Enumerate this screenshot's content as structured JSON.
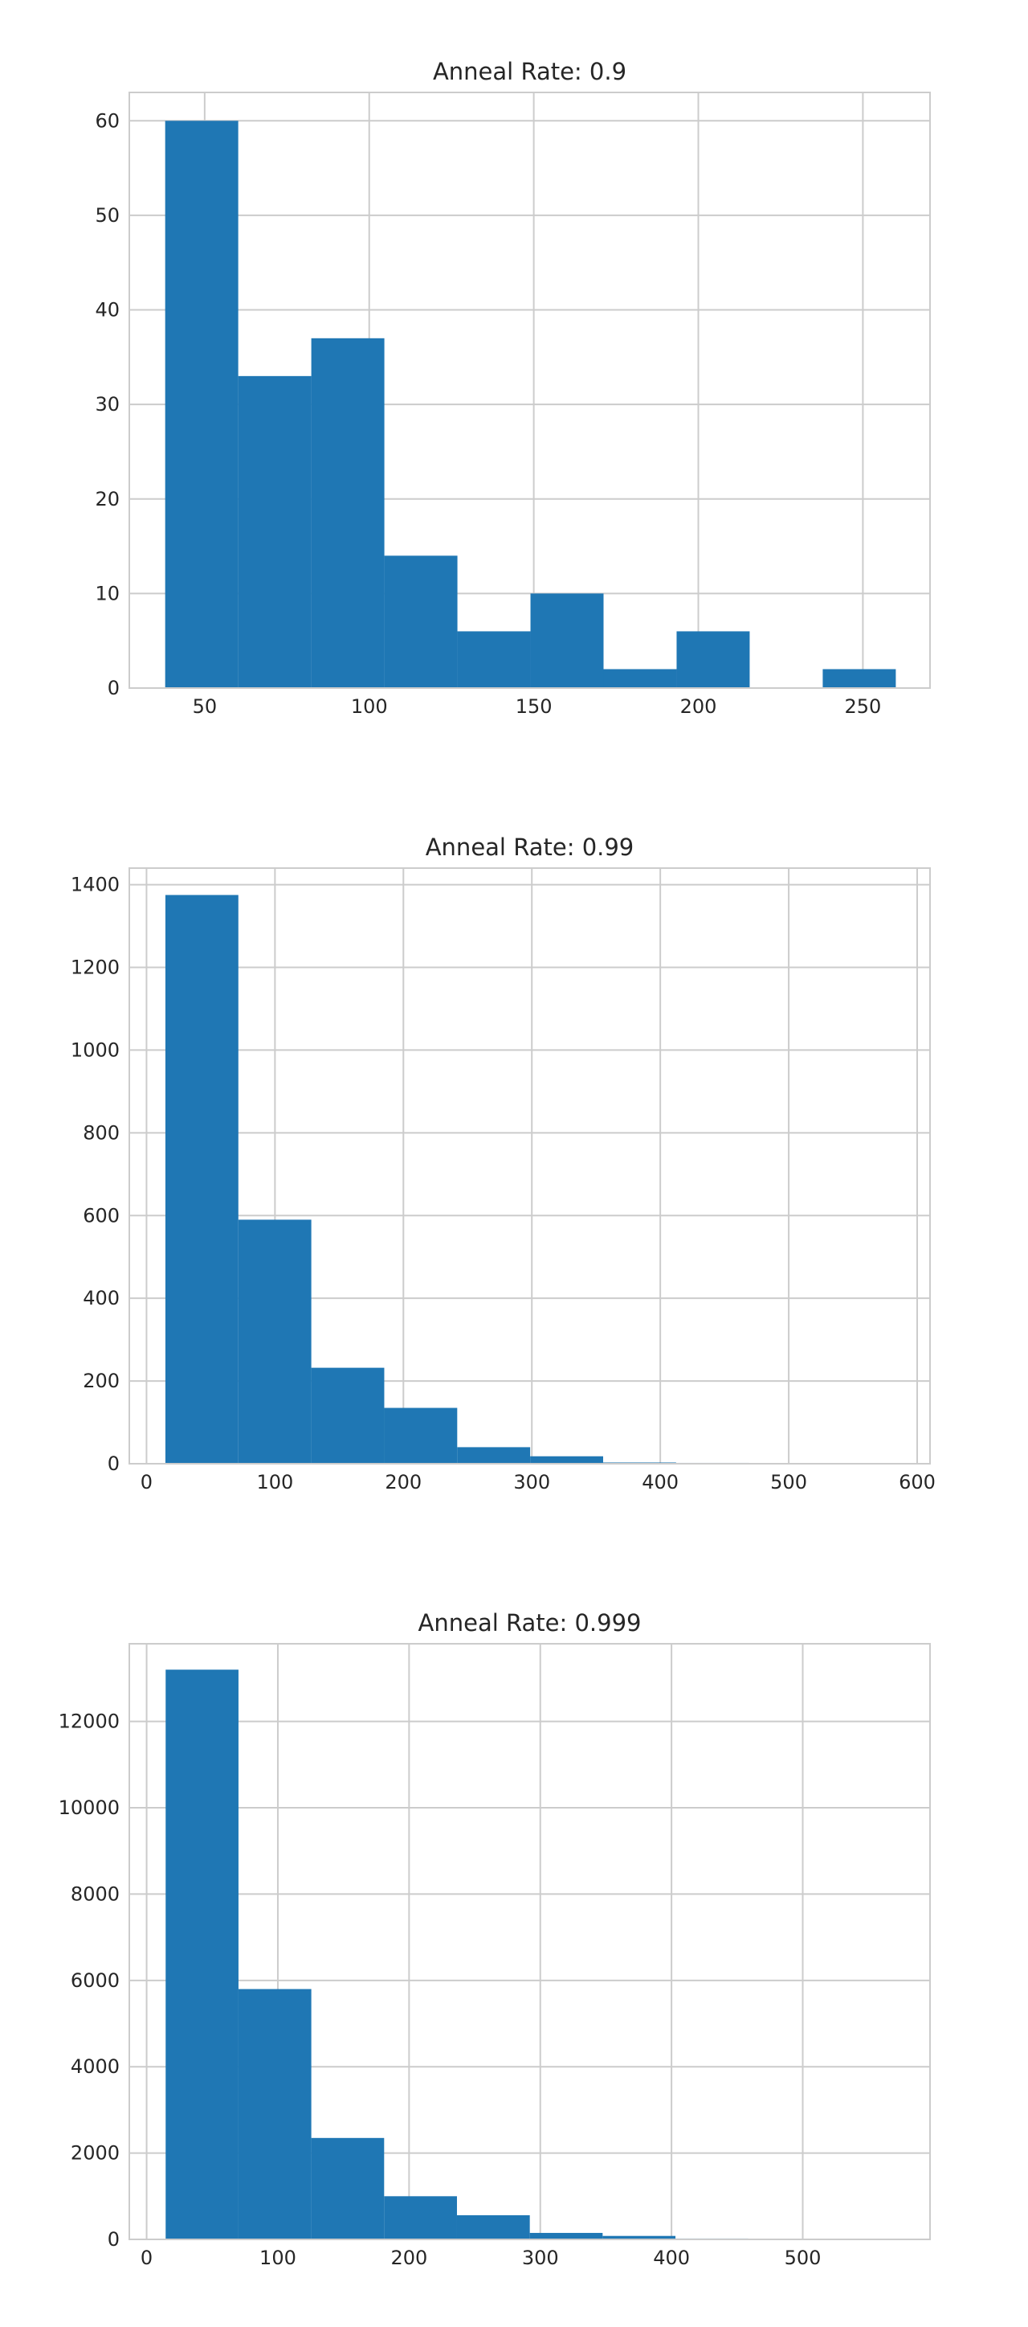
{
  "chart_data": [
    {
      "type": "bar",
      "title": "Anneal Rate: 0.9",
      "xlabel": "",
      "ylabel": "",
      "xlim": [
        27.1,
        270.4
      ],
      "ylim": [
        0,
        63
      ],
      "x_ticks": [
        50,
        100,
        150,
        200,
        250
      ],
      "y_ticks": [
        0,
        10,
        20,
        30,
        40,
        50,
        60
      ],
      "grid": true,
      "bin_edges": [
        38,
        60.2,
        82.4,
        104.6,
        126.8,
        149,
        171.2,
        193.4,
        215.6,
        237.8,
        260
      ],
      "values": [
        60,
        33,
        37,
        14,
        6,
        10,
        2,
        6,
        0,
        2
      ],
      "color": "#1f77b4"
    },
    {
      "type": "bar",
      "title": "Anneal Rate: 0.99",
      "xlabel": "",
      "ylabel": "",
      "xlim": [
        -13.4,
        610
      ],
      "ylim": [
        0,
        1440
      ],
      "x_ticks": [
        0,
        100,
        200,
        300,
        400,
        500,
        600
      ],
      "y_ticks": [
        0,
        200,
        400,
        600,
        800,
        1000,
        1200,
        1400
      ],
      "grid": true,
      "bin_edges": [
        14.7,
        71.5,
        128.3,
        185.1,
        241.9,
        298.7,
        355.5,
        412.3,
        469.1,
        525.9,
        582.7
      ],
      "values": [
        1375,
        590,
        232,
        135,
        40,
        18,
        3,
        2,
        1,
        1
      ],
      "color": "#1f77b4"
    },
    {
      "type": "bar",
      "title": "Anneal Rate: 0.999",
      "xlabel": "",
      "ylabel": "",
      "xlim": [
        -13.2,
        597
      ],
      "ylim": [
        0,
        13800
      ],
      "x_ticks": [
        0,
        100,
        200,
        300,
        400,
        500
      ],
      "y_ticks": [
        0,
        2000,
        4000,
        6000,
        8000,
        10000,
        12000
      ],
      "grid": true,
      "bin_edges": [
        14.5,
        70.0,
        125.5,
        181.0,
        236.5,
        292.0,
        347.5,
        403.0,
        458.5,
        514.0,
        569.5
      ],
      "values": [
        13200,
        5800,
        2350,
        1000,
        560,
        150,
        80,
        20,
        10,
        5
      ],
      "color": "#1f77b4"
    }
  ],
  "colors": {
    "bar": "#1f77b4",
    "grid": "#cccccc",
    "frame": "#cccccc",
    "text": "#262626",
    "background": "#ffffff"
  }
}
